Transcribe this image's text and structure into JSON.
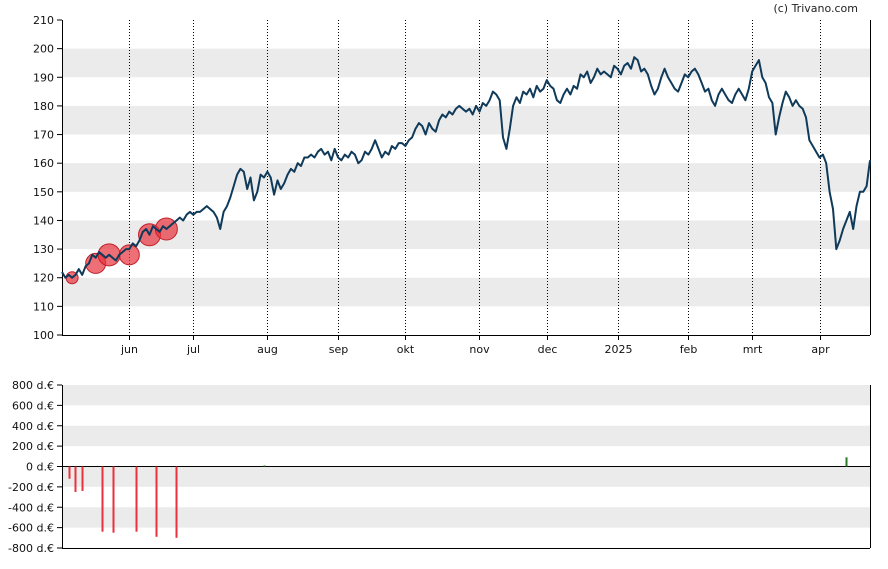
{
  "credit": "(c) Trivano.com",
  "colors": {
    "line": "#0f3a5a",
    "band": "#ebebeb",
    "axis": "#000000",
    "marker": "#e8323c",
    "negative_bar": "#e8323c",
    "positive_bar": "#2a7a2a"
  },
  "chart_data": [
    {
      "type": "line",
      "title": "",
      "xlabel": "",
      "ylabel": "",
      "ylim": [
        100,
        210
      ],
      "yticks": [
        100,
        110,
        120,
        130,
        140,
        150,
        160,
        170,
        180,
        190,
        200,
        210
      ],
      "grid": "horizontal alternating bands, dotted vertical month lines",
      "months": [
        {
          "label": "jun",
          "x": 20
        },
        {
          "label": "jul",
          "x": 39
        },
        {
          "label": "aug",
          "x": 61
        },
        {
          "label": "sep",
          "x": 82
        },
        {
          "label": "okt",
          "x": 102
        },
        {
          "label": "nov",
          "x": 124
        },
        {
          "label": "dec",
          "x": 144
        },
        {
          "label": "2025",
          "x": 165
        },
        {
          "label": "feb",
          "x": 186
        },
        {
          "label": "mrt",
          "x": 205
        },
        {
          "label": "apr",
          "x": 225
        }
      ],
      "x_range": [
        0,
        240
      ],
      "series": [
        {
          "values": [
            [
              0,
              122
            ],
            [
              1,
              120
            ],
            [
              2,
              121
            ],
            [
              3,
              120
            ],
            [
              4,
              121
            ],
            [
              5,
              123
            ],
            [
              6,
              121
            ],
            [
              7,
              124
            ],
            [
              8,
              125
            ],
            [
              9,
              128
            ],
            [
              10,
              127
            ],
            [
              11,
              129
            ],
            [
              12,
              128
            ],
            [
              13,
              127
            ],
            [
              14,
              128
            ],
            [
              15,
              127
            ],
            [
              16,
              126
            ],
            [
              17,
              128
            ],
            [
              18,
              129
            ],
            [
              19,
              130
            ],
            [
              20,
              130
            ],
            [
              21,
              132
            ],
            [
              22,
              131
            ],
            [
              23,
              133
            ],
            [
              24,
              136
            ],
            [
              25,
              137
            ],
            [
              26,
              135
            ],
            [
              27,
              138
            ],
            [
              28,
              137
            ],
            [
              29,
              136
            ],
            [
              30,
              138
            ],
            [
              31,
              137
            ],
            [
              32,
              138
            ],
            [
              33,
              139
            ],
            [
              34,
              140
            ],
            [
              35,
              141
            ],
            [
              36,
              140
            ],
            [
              37,
              142
            ],
            [
              38,
              143
            ],
            [
              39,
              142
            ],
            [
              40,
              143
            ],
            [
              41,
              143
            ],
            [
              42,
              144
            ],
            [
              43,
              145
            ],
            [
              44,
              144
            ],
            [
              45,
              143
            ],
            [
              46,
              141
            ],
            [
              47,
              137
            ],
            [
              48,
              143
            ],
            [
              49,
              145
            ],
            [
              50,
              148
            ],
            [
              51,
              152
            ],
            [
              52,
              156
            ],
            [
              53,
              158
            ],
            [
              54,
              157
            ],
            [
              55,
              151
            ],
            [
              56,
              155
            ],
            [
              57,
              147
            ],
            [
              58,
              150
            ],
            [
              59,
              156
            ],
            [
              60,
              155
            ],
            [
              61,
              157
            ],
            [
              62,
              155
            ],
            [
              63,
              149
            ],
            [
              64,
              154
            ],
            [
              65,
              151
            ],
            [
              66,
              153
            ],
            [
              67,
              156
            ],
            [
              68,
              158
            ],
            [
              69,
              157
            ],
            [
              70,
              160
            ],
            [
              71,
              159
            ],
            [
              72,
              162
            ],
            [
              73,
              162
            ],
            [
              74,
              163
            ],
            [
              75,
              162
            ],
            [
              76,
              164
            ],
            [
              77,
              165
            ],
            [
              78,
              163
            ],
            [
              79,
              164
            ],
            [
              80,
              161
            ],
            [
              81,
              165
            ],
            [
              82,
              162
            ],
            [
              83,
              161
            ],
            [
              84,
              163
            ],
            [
              85,
              162
            ],
            [
              86,
              164
            ],
            [
              87,
              163
            ],
            [
              88,
              160
            ],
            [
              89,
              161
            ],
            [
              90,
              164
            ],
            [
              91,
              163
            ],
            [
              92,
              165
            ],
            [
              93,
              168
            ],
            [
              94,
              165
            ],
            [
              95,
              162
            ],
            [
              96,
              164
            ],
            [
              97,
              163
            ],
            [
              98,
              166
            ],
            [
              99,
              165
            ],
            [
              100,
              167
            ],
            [
              101,
              167
            ],
            [
              102,
              166
            ],
            [
              103,
              168
            ],
            [
              104,
              169
            ],
            [
              105,
              172
            ],
            [
              106,
              174
            ],
            [
              107,
              173
            ],
            [
              108,
              170
            ],
            [
              109,
              174
            ],
            [
              110,
              172
            ],
            [
              111,
              171
            ],
            [
              112,
              175
            ],
            [
              113,
              177
            ],
            [
              114,
              176
            ],
            [
              115,
              178
            ],
            [
              116,
              177
            ],
            [
              117,
              179
            ],
            [
              118,
              180
            ],
            [
              119,
              179
            ],
            [
              120,
              178
            ],
            [
              121,
              179
            ],
            [
              122,
              177
            ],
            [
              123,
              180
            ],
            [
              124,
              178
            ],
            [
              125,
              181
            ],
            [
              126,
              180
            ],
            [
              127,
              182
            ],
            [
              128,
              185
            ],
            [
              129,
              184
            ],
            [
              130,
              182
            ],
            [
              131,
              169
            ],
            [
              132,
              165
            ],
            [
              133,
              172
            ],
            [
              134,
              180
            ],
            [
              135,
              183
            ],
            [
              136,
              181
            ],
            [
              137,
              185
            ],
            [
              138,
              184
            ],
            [
              139,
              186
            ],
            [
              140,
              183
            ],
            [
              141,
              187
            ],
            [
              142,
              185
            ],
            [
              143,
              186
            ],
            [
              144,
              189
            ],
            [
              145,
              187
            ],
            [
              146,
              186
            ],
            [
              147,
              182
            ],
            [
              148,
              181
            ],
            [
              149,
              184
            ],
            [
              150,
              186
            ],
            [
              151,
              184
            ],
            [
              152,
              187
            ],
            [
              153,
              186
            ],
            [
              154,
              191
            ],
            [
              155,
              190
            ],
            [
              156,
              192
            ],
            [
              157,
              188
            ],
            [
              158,
              190
            ],
            [
              159,
              193
            ],
            [
              160,
              191
            ],
            [
              161,
              192
            ],
            [
              162,
              191
            ],
            [
              163,
              190
            ],
            [
              164,
              194
            ],
            [
              165,
              193
            ],
            [
              166,
              191
            ],
            [
              167,
              194
            ],
            [
              168,
              195
            ],
            [
              169,
              193
            ],
            [
              170,
              197
            ],
            [
              171,
              196
            ],
            [
              172,
              192
            ],
            [
              173,
              193
            ],
            [
              174,
              191
            ],
            [
              175,
              187
            ],
            [
              176,
              184
            ],
            [
              177,
              186
            ],
            [
              178,
              190
            ],
            [
              179,
              193
            ],
            [
              180,
              190
            ],
            [
              181,
              188
            ],
            [
              182,
              186
            ],
            [
              183,
              185
            ],
            [
              184,
              188
            ],
            [
              185,
              191
            ],
            [
              186,
              190
            ],
            [
              187,
              192
            ],
            [
              188,
              193
            ],
            [
              189,
              191
            ],
            [
              190,
              188
            ],
            [
              191,
              185
            ],
            [
              192,
              186
            ],
            [
              193,
              182
            ],
            [
              194,
              180
            ],
            [
              195,
              184
            ],
            [
              196,
              186
            ],
            [
              197,
              184
            ],
            [
              198,
              182
            ],
            [
              199,
              181
            ],
            [
              200,
              184
            ],
            [
              201,
              186
            ],
            [
              202,
              184
            ],
            [
              203,
              182
            ],
            [
              204,
              186
            ],
            [
              205,
              192
            ],
            [
              206,
              194
            ],
            [
              207,
              196
            ],
            [
              208,
              190
            ],
            [
              209,
              188
            ],
            [
              210,
              183
            ],
            [
              211,
              181
            ],
            [
              212,
              170
            ],
            [
              213,
              176
            ],
            [
              214,
              181
            ],
            [
              215,
              185
            ],
            [
              216,
              183
            ],
            [
              217,
              180
            ],
            [
              218,
              182
            ],
            [
              219,
              180
            ],
            [
              220,
              179
            ],
            [
              221,
              176
            ],
            [
              222,
              168
            ],
            [
              223,
              166
            ],
            [
              224,
              164
            ],
            [
              225,
              162
            ],
            [
              226,
              163
            ],
            [
              227,
              160
            ],
            [
              228,
              150
            ],
            [
              229,
              144
            ],
            [
              230,
              130
            ],
            [
              231,
              133
            ],
            [
              232,
              137
            ],
            [
              233,
              140
            ],
            [
              234,
              143
            ],
            [
              235,
              137
            ],
            [
              236,
              145
            ],
            [
              237,
              150
            ],
            [
              238,
              150
            ],
            [
              239,
              152
            ],
            [
              240,
              161
            ]
          ]
        }
      ],
      "markers": [
        {
          "x": 3,
          "y": 120,
          "r": 6
        },
        {
          "x": 10,
          "y": 125,
          "r": 10
        },
        {
          "x": 14,
          "y": 128,
          "r": 11
        },
        {
          "x": 20,
          "y": 128,
          "r": 10
        },
        {
          "x": 26,
          "y": 135,
          "r": 11
        },
        {
          "x": 31,
          "y": 137,
          "r": 11
        }
      ]
    },
    {
      "type": "bar",
      "title": "",
      "xlabel": "",
      "ylabel": "",
      "ylim": [
        -800,
        800
      ],
      "yticks": [
        800,
        600,
        400,
        200,
        0,
        -200,
        -400,
        -600,
        -800
      ],
      "ytick_labels": [
        "800 d.€",
        "600 d.€",
        "400 d.€",
        "200 d.€",
        "0 d.€",
        "-200 d.€",
        "-400 d.€",
        "-600 d.€",
        "-800 d.€"
      ],
      "x_range": [
        0,
        240
      ],
      "bars": [
        {
          "x": 2,
          "value": -120
        },
        {
          "x": 4,
          "value": -250
        },
        {
          "x": 6,
          "value": -240
        },
        {
          "x": 12,
          "value": -640
        },
        {
          "x": 15,
          "value": -650
        },
        {
          "x": 22,
          "value": -640
        },
        {
          "x": 28,
          "value": -690
        },
        {
          "x": 34,
          "value": -700
        },
        {
          "x": 60,
          "value": 10
        },
        {
          "x": 233,
          "value": 90
        }
      ]
    }
  ]
}
